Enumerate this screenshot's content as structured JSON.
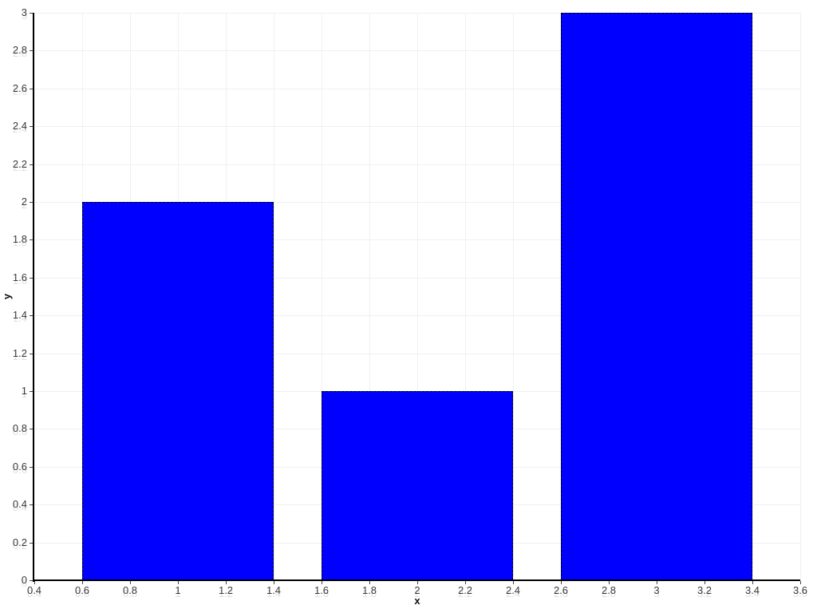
{
  "chart_data": {
    "type": "bar",
    "xlabel": "x",
    "ylabel": "y",
    "x": [
      1,
      2,
      3
    ],
    "values": [
      2,
      1,
      3
    ],
    "bar_width": 0.8,
    "xlim": [
      0.4,
      3.6
    ],
    "ylim": [
      0,
      3
    ],
    "xticks": {
      "values": [
        0.4,
        0.6,
        0.8,
        1,
        1.2,
        1.4,
        1.6,
        1.8,
        2,
        2.2,
        2.4,
        2.6,
        2.8,
        3,
        3.2,
        3.4,
        3.6
      ],
      "labels": [
        "0.4",
        "0.6",
        "0.8",
        "1",
        "1.2",
        "1.4",
        "1.6",
        "1.8",
        "2",
        "2.2",
        "2.4",
        "2.6",
        "2.8",
        "3",
        "3.2",
        "3.4",
        "3.6"
      ]
    },
    "yticks": {
      "values": [
        0,
        0.2,
        0.4,
        0.6,
        0.8,
        1,
        1.2,
        1.4,
        1.6,
        1.8,
        2,
        2.2,
        2.4,
        2.6,
        2.8,
        3
      ],
      "labels": [
        "0",
        "0.2",
        "0.4",
        "0.6",
        "0.8",
        "1",
        "1.2",
        "1.4",
        "1.6",
        "1.8",
        "2",
        "2.2",
        "2.4",
        "2.6",
        "2.8",
        "3"
      ]
    },
    "grid": true,
    "legend": false,
    "colors": {
      "bar_fill": "#0000ff",
      "bar_edge": "#000000",
      "grid": "#f0f0f0",
      "axis": "#000000",
      "tick": "#444444",
      "tick_label": "#3a3a3a",
      "background": "#ffffff"
    }
  }
}
